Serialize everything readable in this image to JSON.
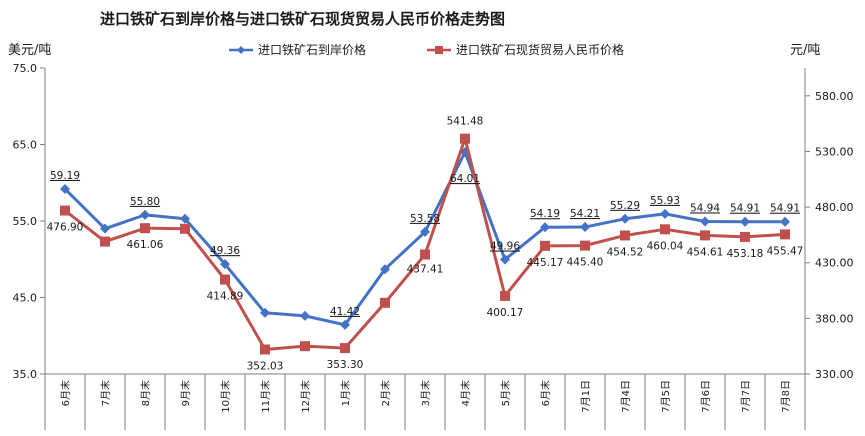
{
  "chart_data": {
    "type": "line",
    "title": "进口铁矿石到岸价格与进口铁矿石现货贸易人民币价格走势图",
    "ylabel_left": "美元/吨",
    "ylabel_right": "元/吨",
    "ylim_left": [
      35,
      75
    ],
    "yticks_left": [
      "35.0",
      "45.0",
      "55.0",
      "65.0",
      "75.0"
    ],
    "ylim_right": [
      330,
      605
    ],
    "yticks_right": [
      "330.00",
      "380.00",
      "430.00",
      "480.00",
      "530.00",
      "580.00"
    ],
    "categories": [
      "6月末",
      "7月末",
      "8月末",
      "9月末",
      "10月末",
      "11月末",
      "12月末",
      "1月末",
      "2月末",
      "3月末",
      "4月末",
      "5月末",
      "6月末",
      "7月1日",
      "7月4日",
      "7月5日",
      "7月6日",
      "7月7日",
      "7月8日"
    ],
    "legend_position": "top",
    "grid": false,
    "series": [
      {
        "name": "进口铁矿石到岸价格",
        "axis": "left",
        "color": "#4472c4",
        "marker": "diamond",
        "values": [
          59.19,
          54.0,
          55.8,
          55.3,
          49.36,
          43.0,
          42.6,
          41.42,
          48.7,
          53.58,
          64.01,
          49.96,
          54.19,
          54.21,
          55.29,
          55.93,
          54.94,
          54.91,
          54.91
        ],
        "labels": [
          "59.19",
          "",
          "55.80",
          "",
          "49.36",
          "",
          "",
          "41.42",
          "",
          "53.58",
          "64.01",
          "49.96",
          "54.19",
          "54.21",
          "55.29",
          "55.93",
          "54.94",
          "54.91",
          "54.91"
        ]
      },
      {
        "name": "进口铁矿石现货贸易人民币价格",
        "axis": "right",
        "color": "#c0504d",
        "marker": "square",
        "values": [
          476.9,
          449.0,
          461.06,
          460.5,
          414.89,
          352.03,
          355.0,
          353.3,
          394.0,
          437.41,
          541.48,
          400.17,
          445.17,
          445.4,
          454.52,
          460.04,
          454.61,
          453.18,
          455.47
        ],
        "labels": [
          "476.90",
          "",
          "461.06",
          "",
          "414.89",
          "352.03",
          "",
          "353.30",
          "",
          "437.41",
          "541.48",
          "400.17",
          "445.17",
          "445.40",
          "454.52",
          "460.04",
          "454.61",
          "453.18",
          "455.47"
        ]
      }
    ]
  }
}
